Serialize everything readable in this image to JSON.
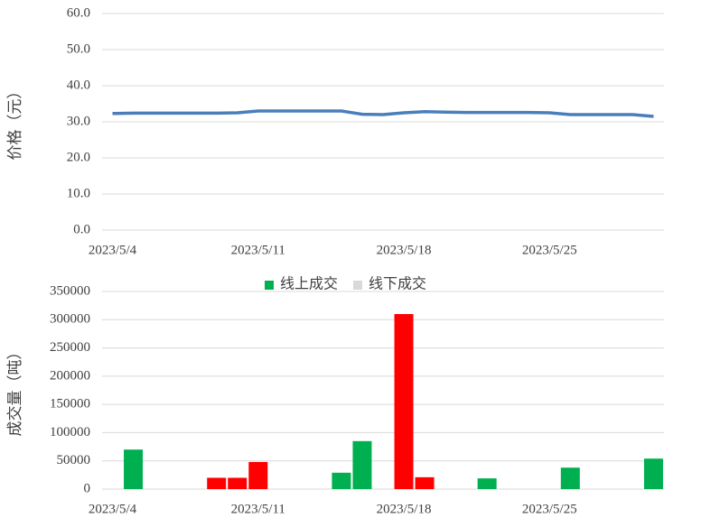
{
  "chart_data": [
    {
      "type": "line",
      "ylabel": "价格（元）",
      "categories": [
        "2023/5/4",
        null,
        null,
        null,
        null,
        null,
        null,
        "2023/5/11",
        null,
        null,
        null,
        null,
        null,
        null,
        "2023/5/18",
        null,
        null,
        null,
        null,
        null,
        null,
        "2023/5/25",
        null,
        null,
        null,
        null,
        null
      ],
      "series": [
        {
          "name": "价格",
          "color": "#4a7ebb",
          "values": [
            32.3,
            32.4,
            32.4,
            32.4,
            32.4,
            32.4,
            32.5,
            33.0,
            33.0,
            33.0,
            33.0,
            33.0,
            32.1,
            32.0,
            32.5,
            32.8,
            32.7,
            32.6,
            32.6,
            32.6,
            32.6,
            32.5,
            32.0,
            32.0,
            32.0,
            32.0,
            31.5
          ]
        }
      ],
      "ylim": [
        0,
        60
      ],
      "yticks": [
        {
          "value": 0,
          "label": "0.0"
        },
        {
          "value": 10,
          "label": "10.0"
        },
        {
          "value": 20,
          "label": "20.0"
        },
        {
          "value": 30,
          "label": "30.0"
        },
        {
          "value": 40,
          "label": "40.0"
        },
        {
          "value": 50,
          "label": "50.0"
        },
        {
          "value": 60,
          "label": "60.0"
        }
      ],
      "grid": true
    },
    {
      "type": "bar",
      "ylabel": "成交量（吨）",
      "legend": "top",
      "categories": [
        "2023/5/4",
        null,
        null,
        null,
        null,
        null,
        null,
        "2023/5/11",
        null,
        null,
        null,
        null,
        null,
        null,
        "2023/5/18",
        null,
        null,
        null,
        null,
        null,
        null,
        "2023/5/25",
        null,
        null,
        null,
        null,
        null
      ],
      "series": [
        {
          "name": "线上成交",
          "color": "#00b050",
          "legend_color": "#00b050",
          "values": [
            null,
            70000,
            null,
            null,
            null,
            null,
            null,
            null,
            null,
            null,
            null,
            29000,
            85000,
            null,
            null,
            null,
            null,
            null,
            19000,
            null,
            null,
            null,
            38000,
            null,
            null,
            null,
            54000
          ]
        },
        {
          "name": "线下成交",
          "color": "#ff0000",
          "legend_color": "#d9d9d9",
          "values": [
            null,
            null,
            null,
            null,
            null,
            20000,
            20000,
            48000,
            null,
            null,
            null,
            null,
            null,
            null,
            310000,
            21000,
            null,
            null,
            null,
            null,
            null,
            null,
            null,
            null,
            null,
            null,
            null
          ]
        }
      ],
      "ylim": [
        0,
        350000
      ],
      "yticks": [
        0,
        50000,
        100000,
        150000,
        200000,
        250000,
        300000,
        350000
      ],
      "grid": true
    }
  ]
}
